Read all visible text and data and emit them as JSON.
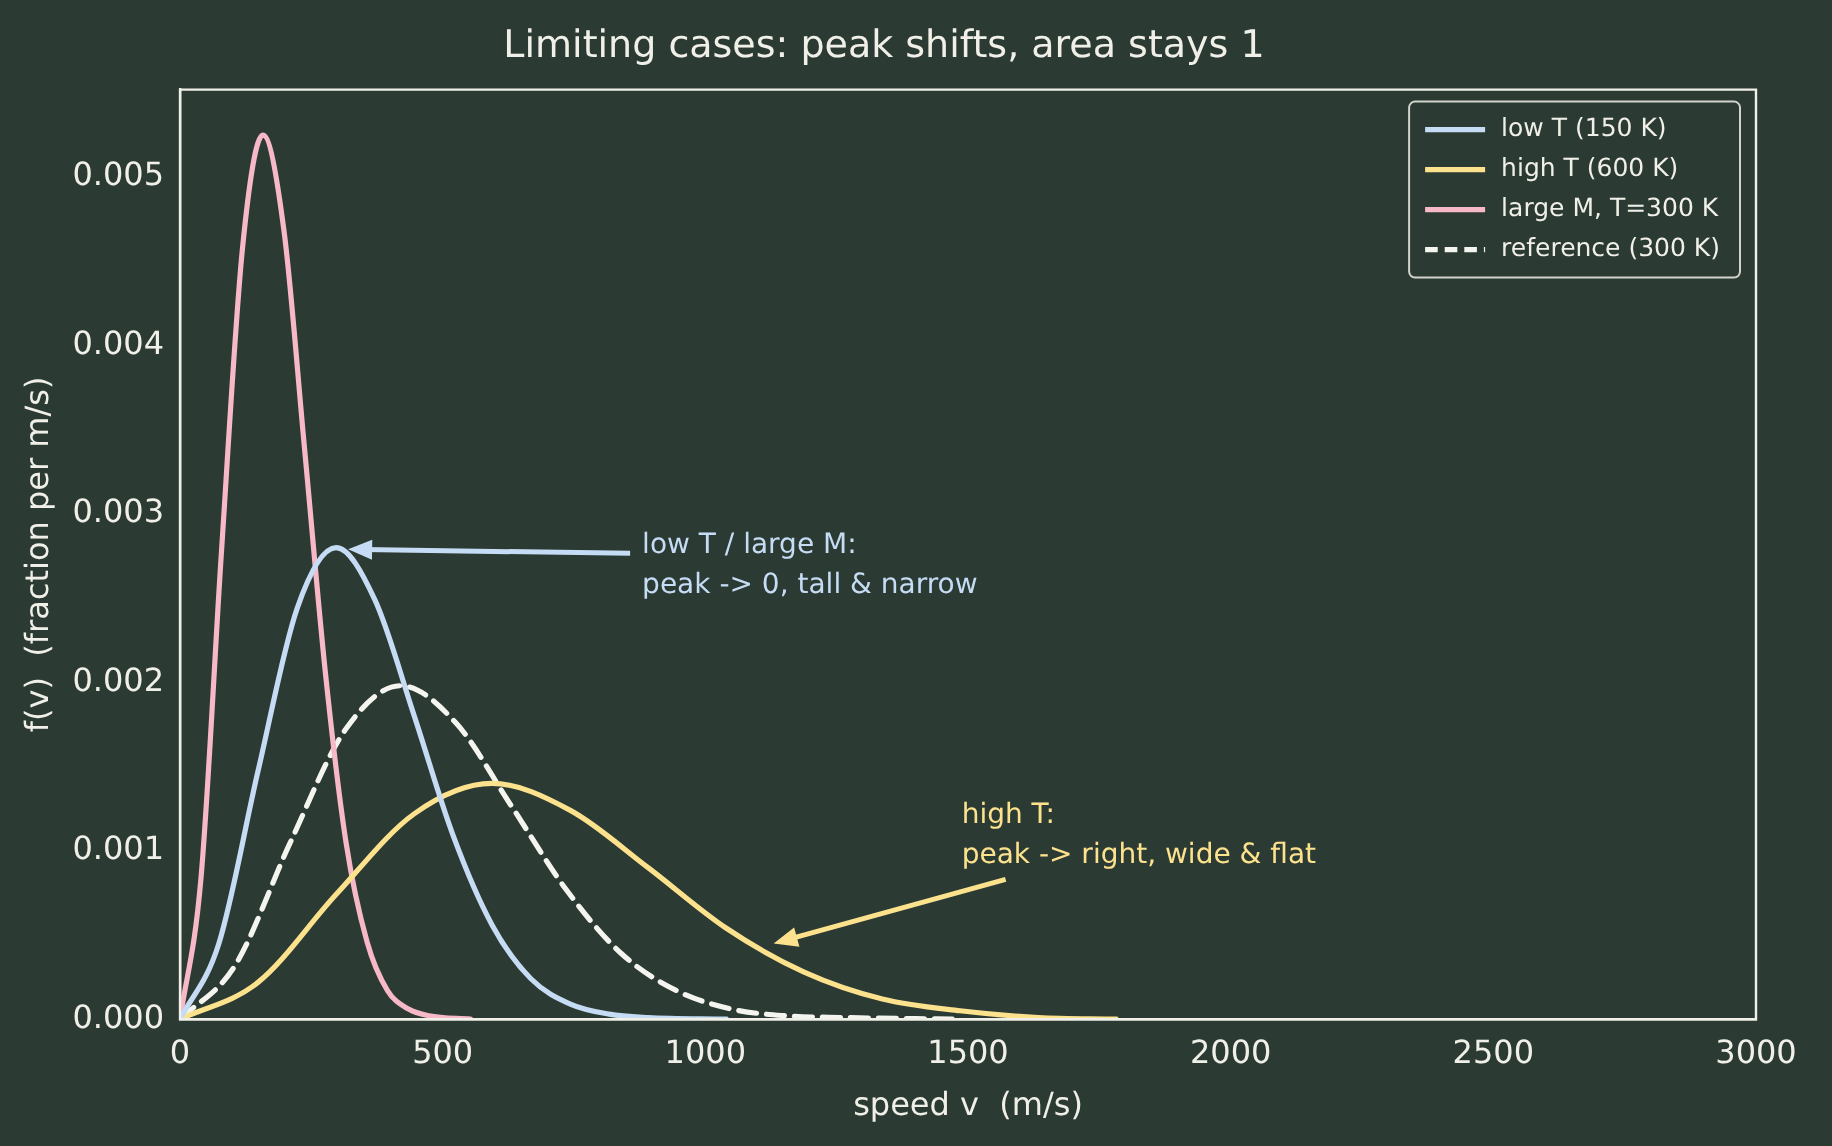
{
  "chart_data": {
    "type": "line",
    "title": "Limiting cases: peak shifts, area stays 1",
    "xlabel": "speed v  (m/s)",
    "ylabel": "f(v)  (fraction per m/s)",
    "xlim": [
      0,
      3000
    ],
    "xticks": [
      0,
      500,
      1000,
      1500,
      2000,
      2500,
      3000
    ],
    "ylim": [
      0,
      0.00552
    ],
    "yticks": [
      {
        "value": 0,
        "label": "0.000"
      },
      {
        "value": 0.001,
        "label": "0.001"
      },
      {
        "value": 0.002,
        "label": "0.002"
      },
      {
        "value": 0.003,
        "label": "0.003"
      },
      {
        "value": 0.004,
        "label": "0.004"
      },
      {
        "value": 0.005,
        "label": "0.005"
      }
    ],
    "grid": false,
    "legend": "top right",
    "marker": "none",
    "series": [
      {
        "name": "low T (150 K)",
        "color": "#c6dcf5",
        "line_style": "solid",
        "x": [
          0,
          74,
          149,
          223,
          297,
          371,
          446,
          520,
          594,
          668,
          743,
          817,
          891,
          1040
        ],
        "values": [
          0,
          0.00045,
          0.00148,
          0.00244,
          0.0028,
          0.00249,
          0.0018,
          0.00109,
          0.00056,
          0.00024,
          9e-05,
          3e-05,
          1e-05,
          0
        ]
      },
      {
        "name": "high T (600 K)",
        "color": "#fde28e",
        "line_style": "solid",
        "x": [
          0,
          149,
          297,
          446,
          594,
          743,
          891,
          1040,
          1188,
          1337,
          1485,
          1634,
          1782
        ],
        "values": [
          0,
          0.00022,
          0.00074,
          0.00122,
          0.0014,
          0.00124,
          0.0009,
          0.00054,
          0.00028,
          0.00012,
          5e-05,
          1e-05,
          0
        ]
      },
      {
        "name": "large M, T=300 K",
        "color": "#f7b8c8",
        "line_style": "solid",
        "x": [
          0,
          40,
          79,
          119,
          158,
          198,
          237,
          277,
          316,
          356,
          395,
          435,
          474,
          553
        ],
        "values": [
          0,
          0.00084,
          0.00278,
          0.00458,
          0.00525,
          0.00468,
          0.00339,
          0.00205,
          0.00105,
          0.00046,
          0.00017,
          6e-05,
          2e-05,
          0
        ]
      },
      {
        "name": "reference (300 K)",
        "color": "#f5f5f0",
        "line_style": "dashed",
        "x": [
          0,
          105,
          210,
          315,
          420,
          525,
          630,
          735,
          840,
          945,
          1050,
          1155,
          1260,
          1470
        ],
        "values": [
          0,
          0.00032,
          0.00105,
          0.00172,
          0.00198,
          0.00176,
          0.00127,
          0.00077,
          0.00039,
          0.00017,
          6e-05,
          2e-05,
          1e-05,
          0
        ]
      }
    ],
    "annotations": [
      {
        "text": "low T / large M:\npeak -> 0, tall & narrow",
        "x": 320,
        "y": 0.00279
      },
      {
        "text": "high T:\npeak -> right, wide & flat",
        "x": 1130,
        "y": 0.00045
      }
    ]
  }
}
